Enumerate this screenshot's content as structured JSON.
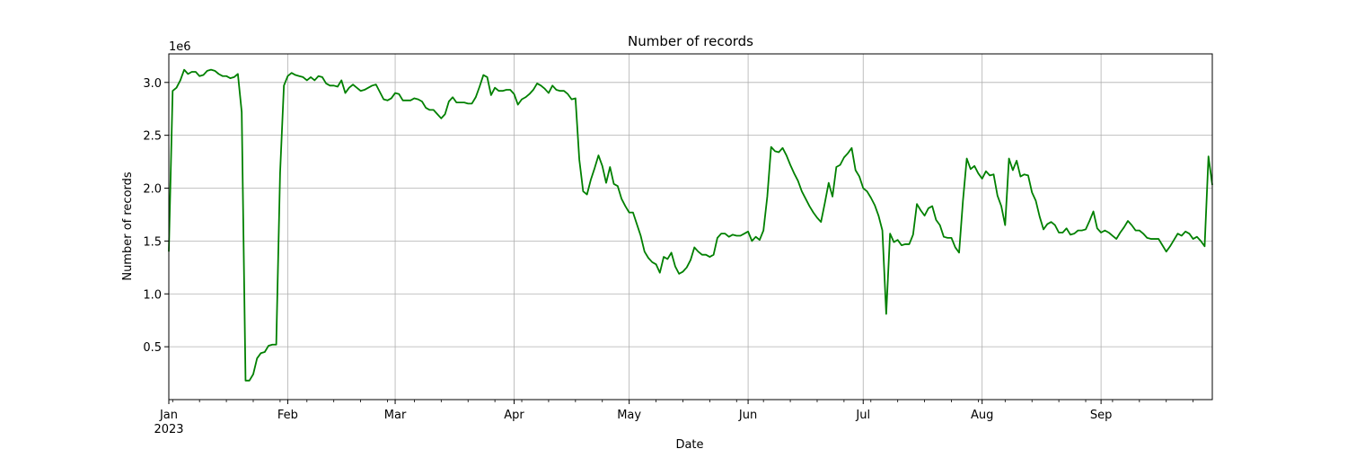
{
  "chart_data": {
    "type": "line",
    "title": "Number of records",
    "xlabel": "Date",
    "ylabel": "Number of records",
    "y_offset_label": "1e6",
    "y_scale_multiplier": 1000000,
    "x_tick_labels": [
      "Jan",
      "Feb",
      "Mar",
      "Apr",
      "May",
      "Jun",
      "Jul",
      "Aug",
      "Sep"
    ],
    "x_year_label": "2023",
    "y_tick_labels": [
      "0.5",
      "1.0",
      "1.5",
      "2.0",
      "2.5",
      "3.0"
    ],
    "ylim": [
      0.0,
      3.27
    ],
    "xlim": [
      "2023-01-01",
      "2023-09-30"
    ],
    "grid": true,
    "color": "#008000",
    "series": [
      {
        "name": "",
        "points": [
          [
            "2023-01-01",
            1.4
          ],
          [
            "2023-01-02",
            2.92
          ],
          [
            "2023-01-03",
            2.95
          ],
          [
            "2023-01-04",
            3.02
          ],
          [
            "2023-01-05",
            3.12
          ],
          [
            "2023-01-06",
            3.08
          ],
          [
            "2023-01-07",
            3.1
          ],
          [
            "2023-01-08",
            3.1
          ],
          [
            "2023-01-09",
            3.06
          ],
          [
            "2023-01-10",
            3.07
          ],
          [
            "2023-01-11",
            3.11
          ],
          [
            "2023-01-12",
            3.12
          ],
          [
            "2023-01-13",
            3.11
          ],
          [
            "2023-01-14",
            3.08
          ],
          [
            "2023-01-15",
            3.06
          ],
          [
            "2023-01-16",
            3.06
          ],
          [
            "2023-01-17",
            3.04
          ],
          [
            "2023-01-18",
            3.05
          ],
          [
            "2023-01-19",
            3.08
          ],
          [
            "2023-01-20",
            2.72
          ],
          [
            "2023-01-21",
            0.18
          ],
          [
            "2023-01-22",
            0.18
          ],
          [
            "2023-01-23",
            0.24
          ],
          [
            "2023-01-24",
            0.39
          ],
          [
            "2023-01-25",
            0.44
          ],
          [
            "2023-01-26",
            0.45
          ],
          [
            "2023-01-27",
            0.51
          ],
          [
            "2023-01-28",
            0.52
          ],
          [
            "2023-01-29",
            0.52
          ],
          [
            "2023-01-30",
            2.14
          ],
          [
            "2023-01-31",
            2.97
          ],
          [
            "2023-02-01",
            3.06
          ],
          [
            "2023-02-02",
            3.09
          ],
          [
            "2023-02-03",
            3.07
          ],
          [
            "2023-02-04",
            3.06
          ],
          [
            "2023-02-05",
            3.05
          ],
          [
            "2023-02-06",
            3.02
          ],
          [
            "2023-02-07",
            3.05
          ],
          [
            "2023-02-08",
            3.02
          ],
          [
            "2023-02-09",
            3.06
          ],
          [
            "2023-02-10",
            3.05
          ],
          [
            "2023-02-11",
            2.99
          ],
          [
            "2023-02-12",
            2.97
          ],
          [
            "2023-02-13",
            2.97
          ],
          [
            "2023-02-14",
            2.96
          ],
          [
            "2023-02-15",
            3.02
          ],
          [
            "2023-02-16",
            2.9
          ],
          [
            "2023-02-17",
            2.95
          ],
          [
            "2023-02-18",
            2.98
          ],
          [
            "2023-02-19",
            2.95
          ],
          [
            "2023-02-20",
            2.92
          ],
          [
            "2023-02-21",
            2.93
          ],
          [
            "2023-02-22",
            2.95
          ],
          [
            "2023-02-23",
            2.97
          ],
          [
            "2023-02-24",
            2.98
          ],
          [
            "2023-02-25",
            2.91
          ],
          [
            "2023-02-26",
            2.84
          ],
          [
            "2023-02-27",
            2.83
          ],
          [
            "2023-02-28",
            2.85
          ],
          [
            "2023-03-01",
            2.9
          ],
          [
            "2023-03-02",
            2.89
          ],
          [
            "2023-03-03",
            2.83
          ],
          [
            "2023-03-04",
            2.83
          ],
          [
            "2023-03-05",
            2.83
          ],
          [
            "2023-03-06",
            2.85
          ],
          [
            "2023-03-07",
            2.84
          ],
          [
            "2023-03-08",
            2.82
          ],
          [
            "2023-03-09",
            2.76
          ],
          [
            "2023-03-10",
            2.74
          ],
          [
            "2023-03-11",
            2.74
          ],
          [
            "2023-03-12",
            2.7
          ],
          [
            "2023-03-13",
            2.66
          ],
          [
            "2023-03-14",
            2.7
          ],
          [
            "2023-03-15",
            2.82
          ],
          [
            "2023-03-16",
            2.86
          ],
          [
            "2023-03-17",
            2.81
          ],
          [
            "2023-03-18",
            2.81
          ],
          [
            "2023-03-19",
            2.81
          ],
          [
            "2023-03-20",
            2.8
          ],
          [
            "2023-03-21",
            2.8
          ],
          [
            "2023-03-22",
            2.86
          ],
          [
            "2023-03-23",
            2.96
          ],
          [
            "2023-03-24",
            3.07
          ],
          [
            "2023-03-25",
            3.05
          ],
          [
            "2023-03-26",
            2.88
          ],
          [
            "2023-03-27",
            2.95
          ],
          [
            "2023-03-28",
            2.92
          ],
          [
            "2023-03-29",
            2.92
          ],
          [
            "2023-03-30",
            2.93
          ],
          [
            "2023-03-31",
            2.93
          ],
          [
            "2023-04-01",
            2.89
          ],
          [
            "2023-04-02",
            2.79
          ],
          [
            "2023-04-03",
            2.84
          ],
          [
            "2023-04-04",
            2.86
          ],
          [
            "2023-04-05",
            2.89
          ],
          [
            "2023-04-06",
            2.93
          ],
          [
            "2023-04-07",
            2.99
          ],
          [
            "2023-04-08",
            2.97
          ],
          [
            "2023-04-09",
            2.94
          ],
          [
            "2023-04-10",
            2.9
          ],
          [
            "2023-04-11",
            2.97
          ],
          [
            "2023-04-12",
            2.93
          ],
          [
            "2023-04-13",
            2.92
          ],
          [
            "2023-04-14",
            2.92
          ],
          [
            "2023-04-15",
            2.89
          ],
          [
            "2023-04-16",
            2.84
          ],
          [
            "2023-04-17",
            2.85
          ],
          [
            "2023-04-18",
            2.27
          ],
          [
            "2023-04-19",
            1.97
          ],
          [
            "2023-04-20",
            1.94
          ],
          [
            "2023-04-21",
            2.08
          ],
          [
            "2023-04-22",
            2.19
          ],
          [
            "2023-04-23",
            2.31
          ],
          [
            "2023-04-24",
            2.21
          ],
          [
            "2023-04-25",
            2.05
          ],
          [
            "2023-04-26",
            2.2
          ],
          [
            "2023-04-27",
            2.04
          ],
          [
            "2023-04-28",
            2.02
          ],
          [
            "2023-04-29",
            1.9
          ],
          [
            "2023-04-30",
            1.83
          ],
          [
            "2023-05-01",
            1.77
          ],
          [
            "2023-05-02",
            1.77
          ],
          [
            "2023-05-03",
            1.66
          ],
          [
            "2023-05-04",
            1.55
          ],
          [
            "2023-05-05",
            1.4
          ],
          [
            "2023-05-06",
            1.34
          ],
          [
            "2023-05-07",
            1.3
          ],
          [
            "2023-05-08",
            1.28
          ],
          [
            "2023-05-09",
            1.2
          ],
          [
            "2023-05-10",
            1.35
          ],
          [
            "2023-05-11",
            1.33
          ],
          [
            "2023-05-12",
            1.39
          ],
          [
            "2023-05-13",
            1.26
          ],
          [
            "2023-05-14",
            1.19
          ],
          [
            "2023-05-15",
            1.21
          ],
          [
            "2023-05-16",
            1.25
          ],
          [
            "2023-05-17",
            1.32
          ],
          [
            "2023-05-18",
            1.44
          ],
          [
            "2023-05-19",
            1.4
          ],
          [
            "2023-05-20",
            1.37
          ],
          [
            "2023-05-21",
            1.37
          ],
          [
            "2023-05-22",
            1.35
          ],
          [
            "2023-05-23",
            1.37
          ],
          [
            "2023-05-24",
            1.53
          ],
          [
            "2023-05-25",
            1.57
          ],
          [
            "2023-05-26",
            1.57
          ],
          [
            "2023-05-27",
            1.54
          ],
          [
            "2023-05-28",
            1.56
          ],
          [
            "2023-05-29",
            1.55
          ],
          [
            "2023-05-30",
            1.55
          ],
          [
            "2023-05-31",
            1.57
          ],
          [
            "2023-06-01",
            1.59
          ],
          [
            "2023-06-02",
            1.5
          ],
          [
            "2023-06-03",
            1.54
          ],
          [
            "2023-06-04",
            1.51
          ],
          [
            "2023-06-05",
            1.6
          ],
          [
            "2023-06-06",
            1.92
          ],
          [
            "2023-06-07",
            2.39
          ],
          [
            "2023-06-08",
            2.35
          ],
          [
            "2023-06-09",
            2.34
          ],
          [
            "2023-06-10",
            2.38
          ],
          [
            "2023-06-11",
            2.31
          ],
          [
            "2023-06-12",
            2.22
          ],
          [
            "2023-06-13",
            2.14
          ],
          [
            "2023-06-14",
            2.07
          ],
          [
            "2023-06-15",
            1.97
          ],
          [
            "2023-06-16",
            1.9
          ],
          [
            "2023-06-17",
            1.83
          ],
          [
            "2023-06-18",
            1.77
          ],
          [
            "2023-06-19",
            1.72
          ],
          [
            "2023-06-20",
            1.68
          ],
          [
            "2023-06-21",
            1.86
          ],
          [
            "2023-06-22",
            2.05
          ],
          [
            "2023-06-23",
            1.92
          ],
          [
            "2023-06-24",
            2.2
          ],
          [
            "2023-06-25",
            2.22
          ],
          [
            "2023-06-26",
            2.29
          ],
          [
            "2023-06-27",
            2.33
          ],
          [
            "2023-06-28",
            2.38
          ],
          [
            "2023-06-29",
            2.17
          ],
          [
            "2023-06-30",
            2.11
          ],
          [
            "2023-07-01",
            2.0
          ],
          [
            "2023-07-02",
            1.97
          ],
          [
            "2023-07-03",
            1.91
          ],
          [
            "2023-07-04",
            1.84
          ],
          [
            "2023-07-05",
            1.74
          ],
          [
            "2023-07-06",
            1.6
          ],
          [
            "2023-07-07",
            0.81
          ],
          [
            "2023-07-08",
            1.57
          ],
          [
            "2023-07-09",
            1.49
          ],
          [
            "2023-07-10",
            1.51
          ],
          [
            "2023-07-11",
            1.46
          ],
          [
            "2023-07-12",
            1.47
          ],
          [
            "2023-07-13",
            1.47
          ],
          [
            "2023-07-14",
            1.56
          ],
          [
            "2023-07-15",
            1.85
          ],
          [
            "2023-07-16",
            1.79
          ],
          [
            "2023-07-17",
            1.74
          ],
          [
            "2023-07-18",
            1.81
          ],
          [
            "2023-07-19",
            1.83
          ],
          [
            "2023-07-20",
            1.7
          ],
          [
            "2023-07-21",
            1.65
          ],
          [
            "2023-07-22",
            1.54
          ],
          [
            "2023-07-23",
            1.53
          ],
          [
            "2023-07-24",
            1.53
          ],
          [
            "2023-07-25",
            1.44
          ],
          [
            "2023-07-26",
            1.39
          ],
          [
            "2023-07-27",
            1.88
          ],
          [
            "2023-07-28",
            2.28
          ],
          [
            "2023-07-29",
            2.18
          ],
          [
            "2023-07-30",
            2.21
          ],
          [
            "2023-07-31",
            2.14
          ],
          [
            "2023-08-01",
            2.09
          ],
          [
            "2023-08-02",
            2.16
          ],
          [
            "2023-08-03",
            2.12
          ],
          [
            "2023-08-04",
            2.13
          ],
          [
            "2023-08-05",
            1.93
          ],
          [
            "2023-08-06",
            1.83
          ],
          [
            "2023-08-07",
            1.65
          ],
          [
            "2023-08-08",
            2.28
          ],
          [
            "2023-08-09",
            2.17
          ],
          [
            "2023-08-10",
            2.26
          ],
          [
            "2023-08-11",
            2.11
          ],
          [
            "2023-08-12",
            2.13
          ],
          [
            "2023-08-13",
            2.12
          ],
          [
            "2023-08-14",
            1.96
          ],
          [
            "2023-08-15",
            1.88
          ],
          [
            "2023-08-16",
            1.73
          ],
          [
            "2023-08-17",
            1.61
          ],
          [
            "2023-08-18",
            1.66
          ],
          [
            "2023-08-19",
            1.68
          ],
          [
            "2023-08-20",
            1.65
          ],
          [
            "2023-08-21",
            1.58
          ],
          [
            "2023-08-22",
            1.58
          ],
          [
            "2023-08-23",
            1.62
          ],
          [
            "2023-08-24",
            1.56
          ],
          [
            "2023-08-25",
            1.57
          ],
          [
            "2023-08-26",
            1.6
          ],
          [
            "2023-08-27",
            1.6
          ],
          [
            "2023-08-28",
            1.61
          ],
          [
            "2023-08-29",
            1.69
          ],
          [
            "2023-08-30",
            1.78
          ],
          [
            "2023-08-31",
            1.62
          ],
          [
            "2023-09-01",
            1.58
          ],
          [
            "2023-09-02",
            1.6
          ],
          [
            "2023-09-03",
            1.58
          ],
          [
            "2023-09-04",
            1.55
          ],
          [
            "2023-09-05",
            1.52
          ],
          [
            "2023-09-06",
            1.58
          ],
          [
            "2023-09-07",
            1.63
          ],
          [
            "2023-09-08",
            1.69
          ],
          [
            "2023-09-09",
            1.65
          ],
          [
            "2023-09-10",
            1.6
          ],
          [
            "2023-09-11",
            1.6
          ],
          [
            "2023-09-12",
            1.57
          ],
          [
            "2023-09-13",
            1.53
          ],
          [
            "2023-09-14",
            1.52
          ],
          [
            "2023-09-15",
            1.52
          ],
          [
            "2023-09-16",
            1.52
          ],
          [
            "2023-09-17",
            1.46
          ],
          [
            "2023-09-18",
            1.4
          ],
          [
            "2023-09-19",
            1.45
          ],
          [
            "2023-09-20",
            1.51
          ],
          [
            "2023-09-21",
            1.57
          ],
          [
            "2023-09-22",
            1.55
          ],
          [
            "2023-09-23",
            1.59
          ],
          [
            "2023-09-24",
            1.57
          ],
          [
            "2023-09-25",
            1.52
          ],
          [
            "2023-09-26",
            1.54
          ],
          [
            "2023-09-27",
            1.5
          ],
          [
            "2023-09-28",
            1.45
          ],
          [
            "2023-09-29",
            2.3
          ],
          [
            "2023-09-30",
            2.03
          ]
        ]
      }
    ]
  }
}
